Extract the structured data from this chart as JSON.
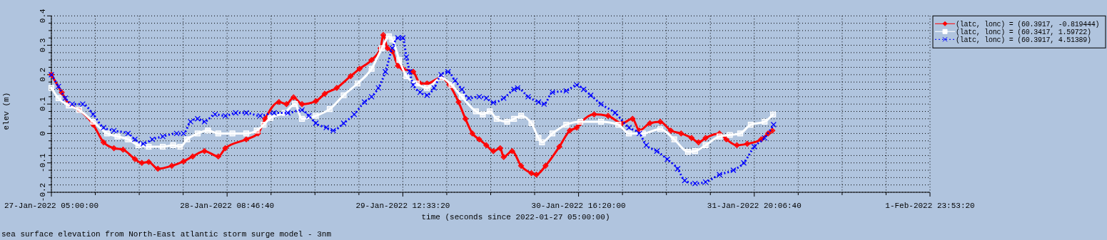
{
  "chart_data": {
    "type": "line",
    "xlabel": "time (seconds since 2022-01-27 05:00:00)",
    "ylabel": "elev (m)",
    "annotations": [
      "sea surface elevation from North-East atlantic storm surge model - 3nm"
    ],
    "xlim": [
      "2022-01-27T05:00:00",
      "2022-02-01T23:53:20"
    ],
    "ylim": [
      -0.2,
      0.4
    ],
    "xticks": [
      {
        "value": "2022-01-27T05:00:00",
        "label": "27-Jan-2022 05:00:00"
      },
      {
        "value": "2022-01-27T11:56:40",
        "label": null
      },
      {
        "value": "2022-01-27T18:53:20",
        "label": null
      },
      {
        "value": "2022-01-28T01:50:00",
        "label": null
      },
      {
        "value": "2022-01-28T08:46:40",
        "label": "28-Jan-2022 08:46:40"
      },
      {
        "value": "2022-01-28T15:43:20",
        "label": null
      },
      {
        "value": "2022-01-28T22:40:00",
        "label": null
      },
      {
        "value": "2022-01-29T05:36:40",
        "label": null
      },
      {
        "value": "2022-01-29T12:33:20",
        "label": "29-Jan-2022 12:33:20"
      },
      {
        "value": "2022-01-29T19:30:00",
        "label": null
      },
      {
        "value": "2022-01-30T02:26:40",
        "label": null
      },
      {
        "value": "2022-01-30T09:23:20",
        "label": null
      },
      {
        "value": "2022-01-30T16:20:00",
        "label": "30-Jan-2022 16:20:00"
      },
      {
        "value": "2022-01-30T23:16:40",
        "label": null
      },
      {
        "value": "2022-01-31T06:13:20",
        "label": null
      },
      {
        "value": "2022-01-31T13:10:00",
        "label": null
      },
      {
        "value": "2022-01-31T20:06:40",
        "label": "31-Jan-2022 20:06:40"
      },
      {
        "value": "2022-02-01T03:03:20",
        "label": null
      },
      {
        "value": "2022-02-01T10:00:00",
        "label": null
      },
      {
        "value": "2022-02-01T16:56:40",
        "label": null
      },
      {
        "value": "2022-02-01T23:53:20",
        "label": "1-Feb-2022 23:53:20"
      }
    ],
    "yticks": [
      -0.2,
      {
        "value": -0.175,
        "label": null
      },
      {
        "value": -0.15,
        "label": null
      },
      {
        "value": -0.125,
        "label": null
      },
      -0.1,
      {
        "value": -0.075,
        "label": null
      },
      {
        "value": -0.05,
        "label": null
      },
      {
        "value": -0.025,
        "label": null
      },
      0,
      {
        "value": 0.025,
        "label": null
      },
      {
        "value": 0.05,
        "label": null
      },
      {
        "value": 0.075,
        "label": null
      },
      0.1,
      {
        "value": 0.125,
        "label": null
      },
      {
        "value": 0.15,
        "label": null
      },
      {
        "value": 0.175,
        "label": null
      },
      0.2,
      {
        "value": 0.225,
        "label": null
      },
      {
        "value": 0.25,
        "label": null
      },
      {
        "value": 0.275,
        "label": null
      },
      0.3,
      {
        "value": 0.325,
        "label": null
      },
      {
        "value": 0.35,
        "label": null
      },
      {
        "value": 0.375,
        "label": null
      },
      0.4
    ],
    "grid": true,
    "legend": "top right",
    "series": [
      {
        "name": "(latc, lonc) = (60.3917, -0.819444)",
        "color": "#ff0000",
        "marker": "diamond",
        "line_style": "solid",
        "x": [
          "2022-01-27T05:00",
          "2022-01-27T06:38",
          "2022-01-27T07:45",
          "2022-01-27T09:23",
          "2022-01-27T11:37",
          "2022-01-27T13:15",
          "2022-01-27T14:53",
          "2022-01-27T16:20",
          "2022-01-27T18:12",
          "2022-01-27T19:18",
          "2022-01-27T20:23",
          "2022-01-27T21:50",
          "2022-01-28T00:02",
          "2022-01-28T01:53",
          "2022-01-28T03:20",
          "2022-01-28T05:12",
          "2022-01-28T07:23",
          "2022-01-28T08:30",
          "2022-01-28T11:48",
          "2022-01-28T13:40",
          "2022-01-28T14:47",
          "2022-01-28T16:58",
          "2022-01-28T18:10",
          "2022-01-28T19:17",
          "2022-01-28T20:37",
          "2022-01-28T22:48",
          "2022-01-29T00:13",
          "2022-01-29T02:07",
          "2022-01-29T04:18",
          "2022-01-29T05:43",
          "2022-01-29T07:37",
          "2022-01-29T09:02",
          "2022-01-29T09:28",
          "2022-01-29T10:08",
          "2022-01-29T10:53",
          "2022-01-29T11:47",
          "2022-01-29T12:33",
          "2022-01-29T14:12",
          "2022-01-29T15:18",
          "2022-01-29T16:23",
          "2022-01-29T18:37",
          "2022-01-29T19:55",
          "2022-01-29T21:22",
          "2022-01-29T22:27",
          "2022-01-29T23:33",
          "2022-01-30T00:38",
          "2022-01-30T01:45",
          "2022-01-30T02:52",
          "2022-01-30T03:57",
          "2022-01-30T04:30",
          "2022-01-30T05:50",
          "2022-01-30T07:15",
          "2022-01-30T08:53",
          "2022-01-30T09:40",
          "2022-01-30T11:07",
          "2022-01-30T13:18",
          "2022-01-30T14:57",
          "2022-01-30T16:03",
          "2022-01-30T16:37",
          "2022-01-30T18:48",
          "2022-01-30T21:00",
          "2022-01-30T23:12",
          "2022-01-31T00:52",
          "2022-01-31T01:57",
          "2022-01-31T03:37",
          "2022-01-31T05:15",
          "2022-01-31T06:55",
          "2022-01-31T08:33",
          "2022-01-31T10:12",
          "2022-01-31T11:18",
          "2022-01-31T12:25",
          "2022-01-31T14:37",
          "2022-01-31T15:42",
          "2022-01-31T17:22",
          "2022-01-31T19:00",
          "2022-01-31T21:12",
          "2022-01-31T22:18",
          "2022-01-31T22:58"
        ],
        "values": [
          0.2,
          0.14,
          0.1,
          0.08,
          0.03,
          -0.03,
          -0.05,
          -0.055,
          -0.087,
          -0.1,
          -0.097,
          -0.12,
          -0.11,
          -0.095,
          -0.078,
          -0.06,
          -0.078,
          -0.05,
          -0.02,
          0,
          0.05,
          0.107,
          0.1,
          0.123,
          0.1,
          0.11,
          0.135,
          0.155,
          0.195,
          0.22,
          0.25,
          0.29,
          0.335,
          0.29,
          0.28,
          0.23,
          0.22,
          0.21,
          0.17,
          0.17,
          0.19,
          0.165,
          0.107,
          0.05,
          0,
          -0.02,
          -0.04,
          -0.06,
          -0.05,
          -0.08,
          -0.06,
          -0.11,
          -0.135,
          -0.14,
          -0.11,
          -0.045,
          0.01,
          0.02,
          0.035,
          0.065,
          0.06,
          0.035,
          0.05,
          0.01,
          0.035,
          0.04,
          0.01,
          0,
          -0.015,
          -0.03,
          -0.015,
          0,
          -0.02,
          -0.04,
          -0.035,
          -0.02,
          0,
          0.01
        ]
      },
      {
        "name": "(latc, lonc) = (60.3417, 1.59722)",
        "color": "#ffffff",
        "marker": "square",
        "line_style": "solid",
        "x": [
          "2022-01-27T05:00",
          "2022-01-27T06:07",
          "2022-01-27T07:45",
          "2022-01-27T09:23",
          "2022-01-27T11:37",
          "2022-01-27T13:48",
          "2022-01-27T15:27",
          "2022-01-27T17:07",
          "2022-01-27T18:45",
          "2022-01-27T20:23",
          "2022-01-27T22:37",
          "2022-01-28T00:15",
          "2022-01-28T01:22",
          "2022-01-28T02:27",
          "2022-01-28T04:07",
          "2022-01-28T05:45",
          "2022-01-28T07:23",
          "2022-01-28T09:37",
          "2022-01-28T11:48",
          "2022-01-28T13:27",
          "2022-01-28T14:33",
          "2022-01-28T15:38",
          "2022-01-28T17:52",
          "2022-01-28T19:30",
          "2022-01-28T20:37",
          "2022-01-28T22:48",
          "2022-01-29T01:00",
          "2022-01-29T03:12",
          "2022-01-29T05:23",
          "2022-01-29T07:37",
          "2022-01-29T09:15",
          "2022-01-29T10:22",
          "2022-01-29T10:53",
          "2022-01-29T12:00",
          "2022-01-29T13:07",
          "2022-01-29T14:45",
          "2022-01-29T16:23",
          "2022-01-29T18:37",
          "2022-01-29T20:15",
          "2022-01-29T21:53",
          "2022-01-30T00:07",
          "2022-01-30T01:12",
          "2022-01-30T02:18",
          "2022-01-30T03:23",
          "2022-01-30T05:03",
          "2022-01-30T06:08",
          "2022-01-30T07:15",
          "2022-01-30T08:53",
          "2022-01-30T10:00",
          "2022-01-30T10:33",
          "2022-01-30T12:12",
          "2022-01-30T14:23",
          "2022-01-30T16:37",
          "2022-01-30T19:53",
          "2022-01-30T22:38",
          "2022-01-31T00:18",
          "2022-01-31T02:30",
          "2022-01-31T05:15",
          "2022-01-31T07:27",
          "2022-01-31T09:38",
          "2022-01-31T10:45",
          "2022-01-31T12:25",
          "2022-01-31T14:37",
          "2022-01-31T16:15",
          "2022-01-31T17:53",
          "2022-01-31T19:33",
          "2022-01-31T21:45",
          "2022-01-31T23:05"
        ],
        "values": [
          0.155,
          0.12,
          0.095,
          0.08,
          0.04,
          0,
          -0.01,
          -0.02,
          -0.04,
          -0.045,
          -0.045,
          -0.04,
          -0.045,
          -0.02,
          0,
          0.01,
          0,
          0,
          0,
          0.01,
          0.03,
          0.053,
          0.07,
          0.1,
          0.05,
          0.06,
          0.083,
          0.13,
          0.17,
          0.22,
          0.29,
          0.33,
          0.32,
          0.25,
          0.195,
          0.17,
          0.155,
          0.19,
          0.165,
          0.125,
          0.075,
          0.065,
          0.075,
          0.05,
          0.04,
          0.05,
          0.06,
          0.035,
          -0.015,
          -0.03,
          0,
          0.03,
          0.04,
          0.04,
          0.03,
          0,
          0,
          0.015,
          -0.02,
          -0.062,
          -0.06,
          -0.04,
          -0.01,
          -0.005,
          0,
          0.03,
          0.04,
          0.065
        ]
      },
      {
        "name": "(latc, lonc) = (60.3917, 4.51389)",
        "color": "#0000ff",
        "marker": "cross",
        "line_style": "dotted",
        "x": [
          "2022-01-27T05:00",
          "2022-01-27T06:07",
          "2022-01-27T07:12",
          "2022-01-27T08:18",
          "2022-01-27T09:57",
          "2022-01-27T11:37",
          "2022-01-27T13:15",
          "2022-01-27T14:53",
          "2022-01-27T17:07",
          "2022-01-27T18:12",
          "2022-01-27T19:32",
          "2022-01-27T20:57",
          "2022-01-27T22:37",
          "2022-01-28T00:48",
          "2022-01-28T01:53",
          "2022-01-28T03:00",
          "2022-01-28T04:07",
          "2022-01-28T05:12",
          "2022-01-28T06:52",
          "2022-01-28T08:30",
          "2022-01-28T10:08",
          "2022-01-28T11:48",
          "2022-01-28T14:00",
          "2022-01-28T16:12",
          "2022-01-28T18:23",
          "2022-01-28T20:37",
          "2022-01-28T21:42",
          "2022-01-28T22:48",
          "2022-01-29T00:27",
          "2022-01-29T01:33",
          "2022-01-29T03:12",
          "2022-01-29T04:52",
          "2022-01-29T06:30",
          "2022-01-29T07:37",
          "2022-01-29T08:42",
          "2022-01-29T09:48",
          "2022-01-29T10:53",
          "2022-01-29T11:47",
          "2022-01-29T12:33",
          "2022-01-29T13:07",
          "2022-01-29T13:38",
          "2022-01-29T14:12",
          "2022-01-29T15:18",
          "2022-01-29T16:23",
          "2022-01-29T17:30",
          "2022-01-29T18:37",
          "2022-01-29T19:42",
          "2022-01-29T20:48",
          "2022-01-29T21:53",
          "2022-01-29T23:00",
          "2022-01-30T00:38",
          "2022-01-30T01:45",
          "2022-01-30T02:52",
          "2022-01-30T04:30",
          "2022-01-30T06:08",
          "2022-01-30T06:42",
          "2022-01-30T08:22",
          "2022-01-30T10:00",
          "2022-01-30T10:53",
          "2022-01-30T12:12",
          "2022-01-30T14:23",
          "2022-01-30T16:03",
          "2022-01-30T17:08",
          "2022-01-30T18:15",
          "2022-01-30T19:53",
          "2022-01-30T22:07",
          "2022-01-31T00:18",
          "2022-01-31T01:57",
          "2022-01-31T03:03",
          "2022-01-31T04:43",
          "2022-01-31T06:22",
          "2022-01-31T08:00",
          "2022-01-31T09:07",
          "2022-01-31T10:45",
          "2022-01-31T12:25",
          "2022-01-31T14:37",
          "2022-01-31T16:48",
          "2022-01-31T18:27",
          "2022-01-31T20:07",
          "2022-01-31T21:45",
          "2022-01-31T23:10"
        ],
        "values": [
          0.2,
          0.16,
          0.12,
          0.1,
          0.1,
          0.065,
          0.02,
          0.01,
          0,
          -0.02,
          -0.035,
          -0.02,
          -0.01,
          0,
          0,
          0.04,
          0.05,
          0.04,
          0.065,
          0.06,
          0.07,
          0.07,
          0.06,
          0.07,
          0.07,
          0.08,
          0.06,
          0.035,
          0.02,
          0.01,
          0.035,
          0.065,
          0.107,
          0.125,
          0.155,
          0.21,
          0.29,
          0.325,
          0.325,
          0.26,
          0.21,
          0.165,
          0.14,
          0.13,
          0.155,
          0.2,
          0.21,
          0.18,
          0.15,
          0.12,
          0.125,
          0.12,
          0.105,
          0.12,
          0.15,
          0.155,
          0.125,
          0.107,
          0.1,
          0.14,
          0.145,
          0.165,
          0.15,
          0.13,
          0.1,
          0.07,
          0.02,
          0,
          -0.04,
          -0.06,
          -0.088,
          -0.12,
          -0.16,
          -0.17,
          -0.165,
          -0.14,
          -0.125,
          -0.1,
          -0.045,
          -0.015,
          0.03
        ]
      }
    ]
  }
}
